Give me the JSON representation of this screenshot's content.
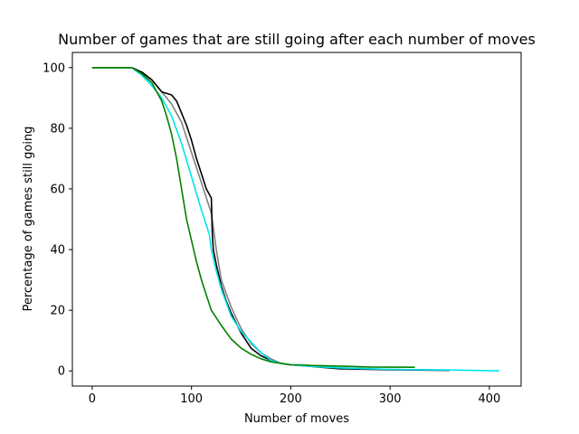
{
  "chart_data": {
    "type": "line",
    "title": "Number of games that are still going after each number of moves",
    "xlabel": "Number of moves",
    "ylabel": "Percentage of games still going",
    "xlim": [
      -20,
      432
    ],
    "ylim": [
      -5,
      105
    ],
    "x_ticks": [
      0,
      100,
      200,
      300,
      400
    ],
    "y_ticks": [
      0,
      20,
      40,
      60,
      80,
      100
    ],
    "grid": false,
    "legend": "none",
    "series": [
      {
        "color": "#808080",
        "x": [
          0,
          40,
          50,
          60,
          70,
          80,
          90,
          100,
          110,
          120,
          125,
          130,
          140,
          150,
          160,
          170,
          180,
          190,
          200,
          220,
          250,
          300,
          340
        ],
        "y": [
          100,
          100,
          98.5,
          96,
          92,
          88,
          82,
          72,
          62,
          52,
          40,
          30,
          21,
          14,
          9,
          6,
          4,
          2.5,
          2,
          1.5,
          1,
          0.5,
          0.3
        ]
      },
      {
        "color": "#000000",
        "x": [
          0,
          40,
          50,
          60,
          65,
          70,
          80,
          85,
          90,
          95,
          100,
          105,
          110,
          115,
          120,
          121,
          122,
          125,
          130,
          135,
          140,
          150,
          160,
          170,
          180,
          190,
          200,
          220,
          250,
          300,
          360
        ],
        "y": [
          100,
          100,
          98.5,
          96,
          94,
          92,
          91,
          89,
          85,
          81,
          76,
          70,
          65,
          60,
          57,
          45,
          40,
          35,
          28,
          23,
          19,
          12.5,
          7.5,
          5,
          3.5,
          2.5,
          2,
          1.5,
          0.7,
          0.4,
          0.2
        ]
      },
      {
        "color": "#00e5ee",
        "x": [
          0,
          40,
          50,
          60,
          70,
          80,
          90,
          100,
          110,
          118,
          120,
          125,
          130,
          140,
          150,
          160,
          170,
          180,
          190,
          200,
          220,
          250,
          300,
          360,
          380,
          410
        ],
        "y": [
          100,
          100,
          97.5,
          94,
          90,
          84,
          75,
          64,
          53,
          45,
          40,
          33,
          27,
          18,
          13,
          9.5,
          6,
          3.5,
          2.5,
          2,
          1.5,
          1,
          0.5,
          0.3,
          0.2,
          0
        ]
      },
      {
        "color": "#008000",
        "x": [
          0,
          40,
          50,
          60,
          70,
          75,
          80,
          85,
          90,
          95,
          100,
          105,
          110,
          115,
          120,
          130,
          140,
          150,
          160,
          170,
          180,
          190,
          200,
          210,
          220,
          250,
          280,
          325
        ],
        "y": [
          100,
          100,
          98,
          95,
          89,
          84,
          78,
          70,
          60,
          50,
          43,
          36,
          30,
          25,
          20,
          15,
          10.5,
          7.5,
          5.5,
          4,
          3,
          2.5,
          2,
          2,
          1.8,
          1.6,
          1.3,
          1.2
        ]
      }
    ]
  }
}
